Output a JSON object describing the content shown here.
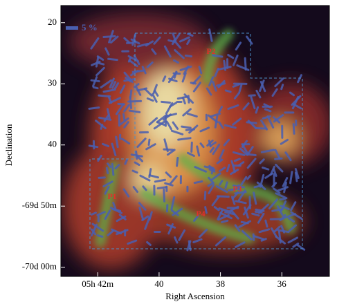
{
  "chart_data": {
    "type": "image",
    "xlabel": "Right Ascension",
    "ylabel": "Declination",
    "xlim": [
      43.2,
      34.45
    ],
    "ylim": [
      61.5,
      17.2
    ],
    "xticks": [
      {
        "value": 42,
        "label": "05h 42m"
      },
      40,
      38,
      36
    ],
    "yticks": [
      20,
      30,
      40,
      {
        "value": 50,
        "label": "-69d 50m"
      },
      {
        "value": 60,
        "label": "-70d 00m"
      }
    ],
    "legend_label": "5 %",
    "regions": [
      "P1",
      "P2",
      "P3",
      "P4"
    ]
  }
}
